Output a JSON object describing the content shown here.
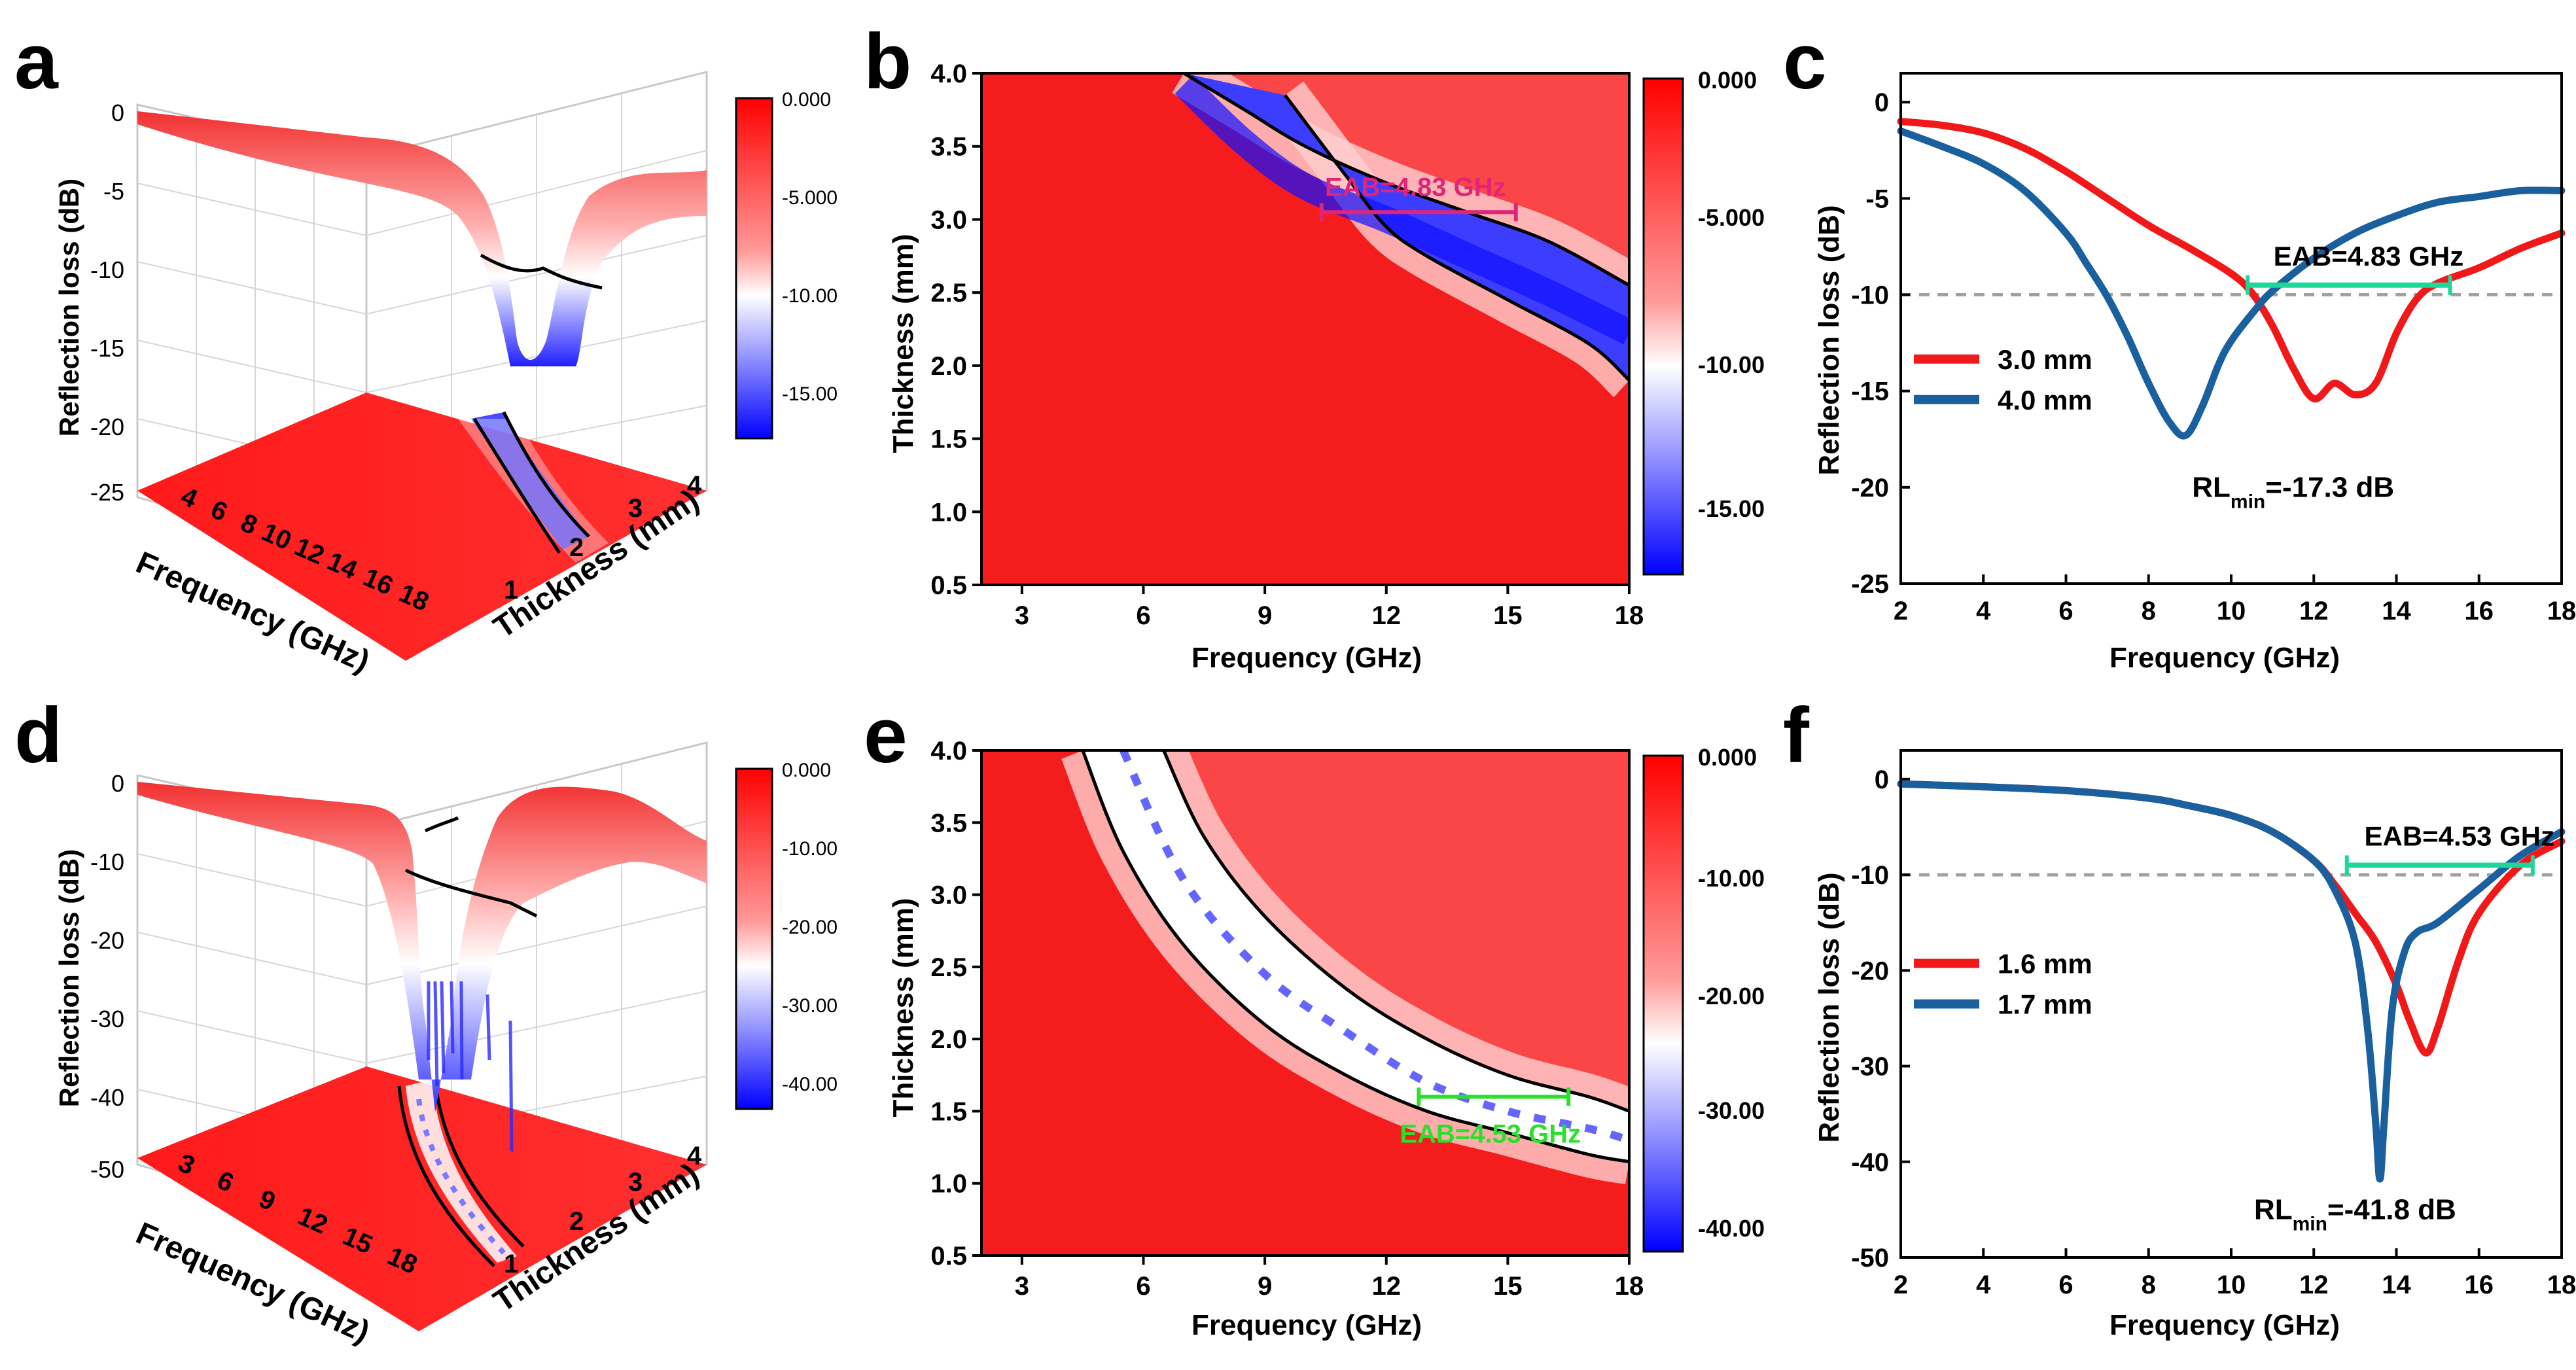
{
  "panel_letters": [
    "a",
    "b",
    "c",
    "d",
    "e",
    "f"
  ],
  "colors": {
    "red": "#f01818",
    "blue": "#1a5f9e",
    "mint": "#1fd69a",
    "magenta": "#e0247a",
    "lime": "#2be02b",
    "dash": "#a0a0a0"
  },
  "chart_data": [
    {
      "id": "a",
      "type": "surface3d",
      "zlabel": "Reflection loss (dB)",
      "xlabel": "Frequency (GHz)",
      "ylabel": "Thickness (mm)",
      "zticks": [
        "0",
        "-5",
        "-10",
        "-15",
        "-20",
        "-25"
      ],
      "xticks": [
        "4",
        "6",
        "8",
        "10",
        "12",
        "14",
        "16",
        "18"
      ],
      "yticks": [
        "1",
        "2",
        "3",
        "4"
      ],
      "colorbar": [
        "0.000",
        "-5.000",
        "-10.00",
        "-15.00"
      ],
      "zlim": [
        -25,
        0
      ],
      "min_rl": -17.3
    },
    {
      "id": "b",
      "type": "heatmap",
      "xlabel": "Frequency (GHz)",
      "ylabel": "Thickness (mm)",
      "xticks": [
        "3",
        "6",
        "9",
        "12",
        "15",
        "18"
      ],
      "yticks": [
        "0.5",
        "1.0",
        "1.5",
        "2.0",
        "2.5",
        "3.0",
        "3.5",
        "4.0"
      ],
      "xlim": [
        2,
        18
      ],
      "ylim": [
        0.5,
        4.0
      ],
      "colorbar": [
        "0.000",
        "-5.000",
        "-10.00",
        "-15.00"
      ],
      "clim": [
        -17.3,
        0
      ],
      "contour_upper": [
        [
          7.0,
          4.0
        ],
        [
          8.5,
          3.75
        ],
        [
          10.0,
          3.5
        ],
        [
          12.0,
          3.25
        ],
        [
          14.0,
          3.05
        ],
        [
          16.0,
          2.85
        ],
        [
          18.0,
          2.55
        ]
      ],
      "contour_lower": [
        [
          9.5,
          3.85
        ],
        [
          11.0,
          3.3
        ],
        [
          12.0,
          2.95
        ],
        [
          13.0,
          2.75
        ],
        [
          15.0,
          2.45
        ],
        [
          17.0,
          2.15
        ],
        [
          18.0,
          1.9
        ]
      ],
      "eab": {
        "label": "EAB=4.83 GHz",
        "x1": 10.4,
        "x2": 15.2,
        "y": 3.05
      }
    },
    {
      "id": "c",
      "type": "line",
      "xlabel": "Frequency (GHz)",
      "ylabel": "Reflection loss (dB)",
      "xticks": [
        "2",
        "4",
        "6",
        "8",
        "10",
        "12",
        "14",
        "16",
        "18"
      ],
      "yticks": [
        "0",
        "-5",
        "-10",
        "-15",
        "-20",
        "-25"
      ],
      "xlim": [
        2,
        18
      ],
      "ylim": [
        -25,
        1.5
      ],
      "series": [
        {
          "name": "3.0 mm",
          "x": [
            2,
            3,
            4,
            5,
            6,
            7,
            8,
            9,
            10,
            10.5,
            11,
            11.5,
            12,
            12.5,
            13,
            13.5,
            14,
            14.5,
            15,
            16,
            17,
            18
          ],
          "y": [
            -1.0,
            -1.2,
            -1.6,
            -2.4,
            -3.6,
            -5.0,
            -6.4,
            -7.6,
            -8.9,
            -9.9,
            -11.6,
            -13.8,
            -15.4,
            -14.6,
            -15.2,
            -14.6,
            -12.0,
            -10.2,
            -9.4,
            -8.6,
            -7.6,
            -6.8
          ]
        },
        {
          "name": "4.0 mm",
          "x": [
            2,
            3,
            4,
            5,
            6,
            6.5,
            7,
            7.5,
            8,
            8.5,
            8.9,
            9.3,
            9.7,
            10,
            10.5,
            11,
            12,
            13,
            14,
            15,
            16,
            17,
            18
          ],
          "y": [
            -1.5,
            -2.3,
            -3.2,
            -4.6,
            -6.8,
            -8.4,
            -10.1,
            -12.2,
            -14.6,
            -16.6,
            -17.3,
            -15.8,
            -13.6,
            -12.4,
            -11.0,
            -9.8,
            -8.1,
            -6.8,
            -5.9,
            -5.2,
            -4.9,
            -4.6,
            -4.6
          ]
        }
      ],
      "threshold": -10,
      "eab": {
        "label": "EAB=4.83 GHz",
        "x1": 10.4,
        "x2": 15.3,
        "y": -9.5
      },
      "annotation": {
        "main": "RL",
        "sub": "min",
        "rest": "=-17.3 dB"
      }
    },
    {
      "id": "d",
      "type": "surface3d",
      "zlabel": "Reflection loss (dB)",
      "xlabel": "Frequency (GHz)",
      "ylabel": "Thickness (mm)",
      "zticks": [
        "0",
        "-10",
        "-20",
        "-30",
        "-40",
        "-50"
      ],
      "xticks": [
        "3",
        "6",
        "9",
        "12",
        "15",
        "18"
      ],
      "yticks": [
        "1",
        "2",
        "3",
        "4"
      ],
      "colorbar": [
        "0.000",
        "-10.00",
        "-20.00",
        "-30.00",
        "-40.00"
      ],
      "zlim": [
        -50,
        0
      ],
      "min_rl": -41.8
    },
    {
      "id": "e",
      "type": "heatmap",
      "xlabel": "Frequency (GHz)",
      "ylabel": "Thickness (mm)",
      "xticks": [
        "3",
        "6",
        "9",
        "12",
        "15",
        "18"
      ],
      "yticks": [
        "0.5",
        "1.0",
        "1.5",
        "2.0",
        "2.5",
        "3.0",
        "3.5",
        "4.0"
      ],
      "xlim": [
        2,
        18
      ],
      "ylim": [
        0.5,
        4.0
      ],
      "colorbar": [
        "0.000",
        "-10.00",
        "-20.00",
        "-30.00",
        "-40.00"
      ],
      "clim": [
        -43,
        0
      ],
      "contour_upper": [
        [
          6.5,
          4.0
        ],
        [
          7.5,
          3.4
        ],
        [
          9.0,
          2.85
        ],
        [
          11.0,
          2.35
        ],
        [
          13.0,
          2.0
        ],
        [
          15.0,
          1.75
        ],
        [
          17.0,
          1.6
        ],
        [
          18.0,
          1.5
        ]
      ],
      "contour_lower": [
        [
          4.5,
          4.0
        ],
        [
          5.5,
          3.3
        ],
        [
          7.0,
          2.65
        ],
        [
          9.0,
          2.1
        ],
        [
          11.0,
          1.75
        ],
        [
          13.0,
          1.5
        ],
        [
          15.0,
          1.35
        ],
        [
          17.0,
          1.2
        ],
        [
          18.0,
          1.15
        ]
      ],
      "ridge": [
        [
          5.5,
          4.0
        ],
        [
          7.0,
          3.1
        ],
        [
          9.0,
          2.45
        ],
        [
          11.0,
          2.05
        ],
        [
          13.0,
          1.7
        ],
        [
          15.0,
          1.5
        ],
        [
          17.0,
          1.38
        ],
        [
          18.0,
          1.3
        ]
      ],
      "eab": {
        "label": "EAB=4.53 GHz",
        "x1": 12.8,
        "x2": 16.5,
        "y": 1.6
      }
    },
    {
      "id": "f",
      "type": "line",
      "xlabel": "Frequency (GHz)",
      "ylabel": "Reflection loss (dB)",
      "xticks": [
        "2",
        "4",
        "6",
        "8",
        "10",
        "12",
        "14",
        "16",
        "18"
      ],
      "yticks": [
        "0",
        "-10",
        "-20",
        "-30",
        "-40",
        "-50"
      ],
      "xlim": [
        2,
        18
      ],
      "ylim": [
        -50,
        3
      ],
      "series": [
        {
          "name": "1.6 mm",
          "x": [
            2,
            4,
            6,
            8,
            9,
            10,
            11,
            12,
            12.5,
            13,
            13.5,
            14,
            14.3,
            14.7,
            15.0,
            15.5,
            16,
            17,
            18
          ],
          "y": [
            -0.5,
            -0.8,
            -1.2,
            -2.0,
            -2.8,
            -3.8,
            -5.5,
            -8.5,
            -11.0,
            -14.0,
            -17.0,
            -21.5,
            -25.0,
            -28.6,
            -26.0,
            -19.0,
            -14.0,
            -9.0,
            -6.5
          ]
        },
        {
          "name": "1.7 mm",
          "x": [
            2,
            4,
            6,
            8,
            9,
            10,
            11,
            12,
            12.5,
            13,
            13.3,
            13.5,
            13.6,
            13.7,
            13.9,
            14.2,
            14.5,
            15,
            16,
            17,
            18
          ],
          "y": [
            -0.5,
            -0.8,
            -1.2,
            -2.0,
            -2.8,
            -3.8,
            -5.5,
            -8.5,
            -11.5,
            -17.0,
            -26.0,
            -36.0,
            -41.8,
            -36.0,
            -24.0,
            -18.0,
            -16.0,
            -15.0,
            -11.5,
            -8.0,
            -5.5
          ]
        }
      ],
      "threshold": -10,
      "eab": {
        "label": "EAB=4.53 GHz",
        "x1": 12.8,
        "x2": 17.3,
        "y": -9
      },
      "annotation": {
        "main": "RL",
        "sub": "min",
        "rest": "=-41.8 dB"
      }
    }
  ]
}
